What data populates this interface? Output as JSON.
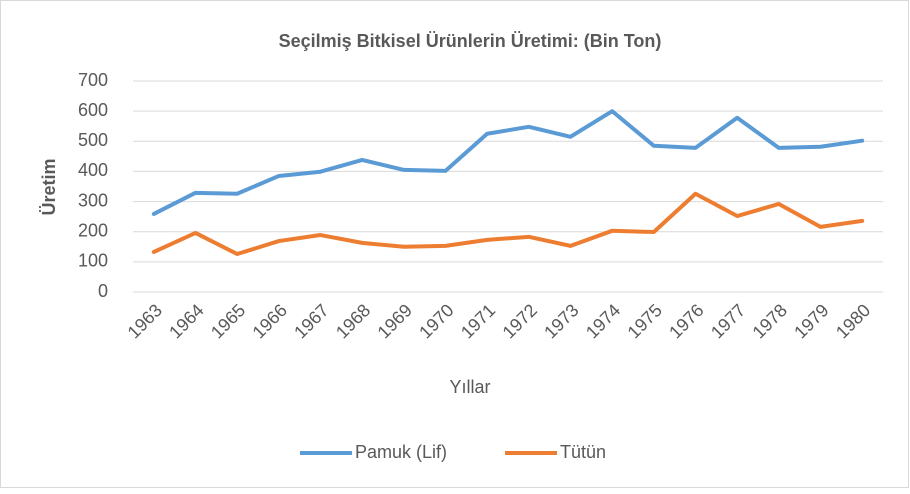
{
  "chart_data": {
    "type": "line",
    "title": "Seçilmiş Bitkisel Ürünlerin Üretimi: (Bin Ton)",
    "x_label": "Yıllar",
    "y_label": "Üretim",
    "categories": [
      "1963",
      "1964",
      "1965",
      "1966",
      "1967",
      "1968",
      "1969",
      "1970",
      "1971",
      "1972",
      "1973",
      "1974",
      "1975",
      "1976",
      "1977",
      "1978",
      "1979",
      "1980"
    ],
    "series": [
      {
        "name": "Pamuk (Lif)",
        "color": "#5b9bd5",
        "values": [
          259,
          329,
          326,
          385,
          399,
          438,
          405,
          402,
          525,
          548,
          515,
          600,
          485,
          478,
          578,
          478,
          482,
          502
        ]
      },
      {
        "name": "Tütün",
        "color": "#ed7d31",
        "values": [
          133,
          196,
          126,
          169,
          189,
          163,
          150,
          153,
          173,
          183,
          153,
          203,
          199,
          326,
          252,
          292,
          216,
          236
        ]
      }
    ],
    "ylim": [
      0,
      700
    ],
    "yticks": [
      0,
      100,
      200,
      300,
      400,
      500,
      600,
      700
    ],
    "grid": true,
    "legend": "bottom"
  }
}
